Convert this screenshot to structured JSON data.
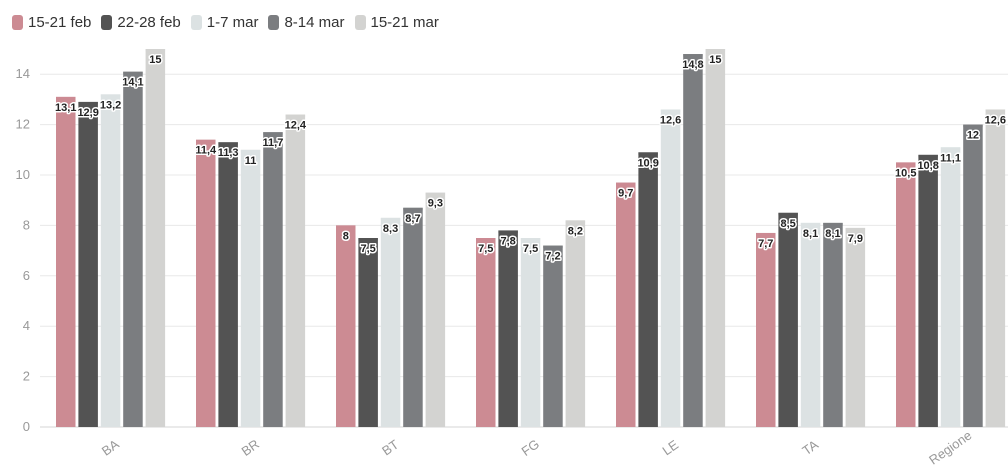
{
  "legend": [
    {
      "label": "15-21 feb",
      "color": "#cc8b93"
    },
    {
      "label": "22-28 feb",
      "color": "#535353"
    },
    {
      "label": "1-7 mar",
      "color": "#dce2e3"
    },
    {
      "label": "8-14 mar",
      "color": "#7b7d80"
    },
    {
      "label": "15-21 mar",
      "color": "#d3d3d1"
    }
  ],
  "chart_data": {
    "type": "bar",
    "categories": [
      "BA",
      "BR",
      "BT",
      "FG",
      "LE",
      "TA",
      "Regione"
    ],
    "series": [
      {
        "name": "15-21 feb",
        "color": "#cc8b93",
        "values": [
          13.1,
          11.4,
          8,
          7.5,
          9.7,
          7.7,
          10.5
        ]
      },
      {
        "name": "22-28 feb",
        "color": "#535353",
        "values": [
          12.9,
          11.3,
          7.5,
          7.8,
          10.9,
          8.5,
          10.8
        ]
      },
      {
        "name": "1-7 mar",
        "color": "#dce2e3",
        "values": [
          13.2,
          11,
          8.3,
          7.5,
          12.6,
          8.1,
          11.1
        ]
      },
      {
        "name": "8-14 mar",
        "color": "#7b7d80",
        "values": [
          14.1,
          11.7,
          8.7,
          7.2,
          14.8,
          8.1,
          12
        ]
      },
      {
        "name": "15-21 mar",
        "color": "#d3d3d1",
        "values": [
          15,
          12.4,
          9.3,
          8.2,
          15,
          7.9,
          12.6
        ]
      }
    ],
    "data_labels": [
      [
        "13,1",
        "11,4",
        "8",
        "7,5",
        "9,7",
        "7,7",
        "10,5"
      ],
      [
        "12,9",
        "11,3",
        "7,5",
        "7,8",
        "10,9",
        "8,5",
        "10,8"
      ],
      [
        "13,2",
        "11",
        "8,3",
        "7,5",
        "12,6",
        "8,1",
        "11,1"
      ],
      [
        "14,1",
        "11,7",
        "8,7",
        "7,2",
        "14,8",
        "8,1",
        "12"
      ],
      [
        "15",
        "12,4",
        "9,3",
        "8,2",
        "15",
        "7,9",
        "12,6"
      ]
    ],
    "y_ticks": [
      "0",
      "2",
      "4",
      "6",
      "8",
      "10",
      "12",
      "14"
    ],
    "ylim": [
      0,
      15
    ],
    "grid": true,
    "legend_position": "top-left",
    "x_tick_rotation": "rotated"
  }
}
